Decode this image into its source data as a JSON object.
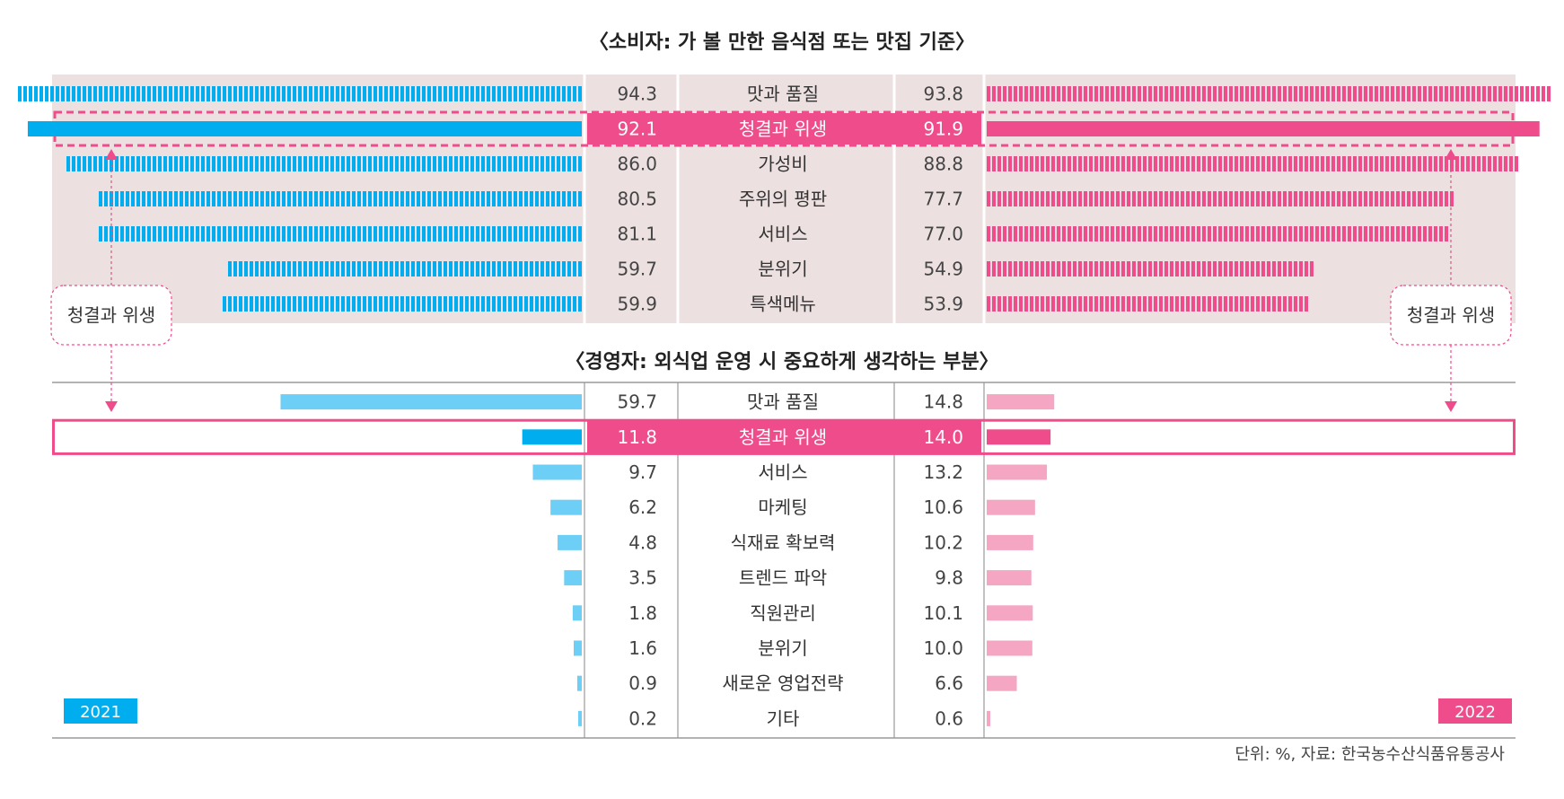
{
  "chart_data": [
    {
      "type": "bar",
      "title": "〈소비자: 가 볼 만한 음식점 또는 맛집 기준〉",
      "categories": [
        "맛과 품질",
        "청결과 위생",
        "가성비",
        "주위의 평판",
        "서비스",
        "분위기",
        "특색메뉴"
      ],
      "series": [
        {
          "name": "2021",
          "values": [
            94.3,
            92.1,
            86.0,
            80.5,
            81.1,
            59.7,
            59.9
          ],
          "labels": [
            "94.3",
            "92.1",
            "86.0",
            "80.5",
            "81.1",
            "59.7",
            "59.9"
          ]
        },
        {
          "name": "2022",
          "values": [
            93.8,
            91.9,
            88.8,
            77.7,
            77.0,
            54.9,
            53.9
          ],
          "labels": [
            "93.8",
            "91.9",
            "88.8",
            "77.7",
            "77.0",
            "54.9",
            "53.9"
          ]
        }
      ],
      "highlight": "청결과 위생",
      "xlim": [
        0,
        100
      ]
    },
    {
      "type": "bar",
      "title": "〈경영자: 외식업 운영 시 중요하게 생각하는 부분〉",
      "categories": [
        "맛과 품질",
        "청결과 위생",
        "서비스",
        "마케팅",
        "식재료 확보력",
        "트렌드 파악",
        "직원관리",
        "분위기",
        "새로운 영업전략",
        "기타"
      ],
      "series": [
        {
          "name": "2021",
          "values": [
            59.7,
            11.8,
            9.7,
            6.2,
            4.8,
            3.5,
            1.8,
            1.6,
            0.9,
            0.2
          ],
          "labels": [
            "59.7",
            "11.8",
            "9.7",
            "6.2",
            "4.8",
            "3.5",
            "1.8",
            "1.6",
            "0.9",
            "0.2"
          ]
        },
        {
          "name": "2022",
          "values": [
            14.8,
            14.0,
            13.2,
            10.6,
            10.2,
            9.8,
            10.1,
            10.0,
            6.6,
            0.6
          ],
          "labels": [
            "14.8",
            "14.0",
            "13.2",
            "10.6",
            "10.2",
            "9.8",
            "10.1",
            "10.0",
            "6.6",
            "0.6"
          ]
        }
      ],
      "highlight": "청결과 위생",
      "xlim": [
        0,
        100
      ]
    }
  ],
  "callout": "청결과 위생",
  "legend": {
    "left": "2021",
    "right": "2022"
  },
  "source": "단위: %,  자료: 한국농수산식품유통공사",
  "colors": {
    "blue": "#00aeef",
    "blue_light": "#6dcff6",
    "pink": "#ee4c8a",
    "pink_light": "#f5a6c3",
    "panel_bg": "#ede0e0",
    "grid": "#9a9a9a"
  }
}
